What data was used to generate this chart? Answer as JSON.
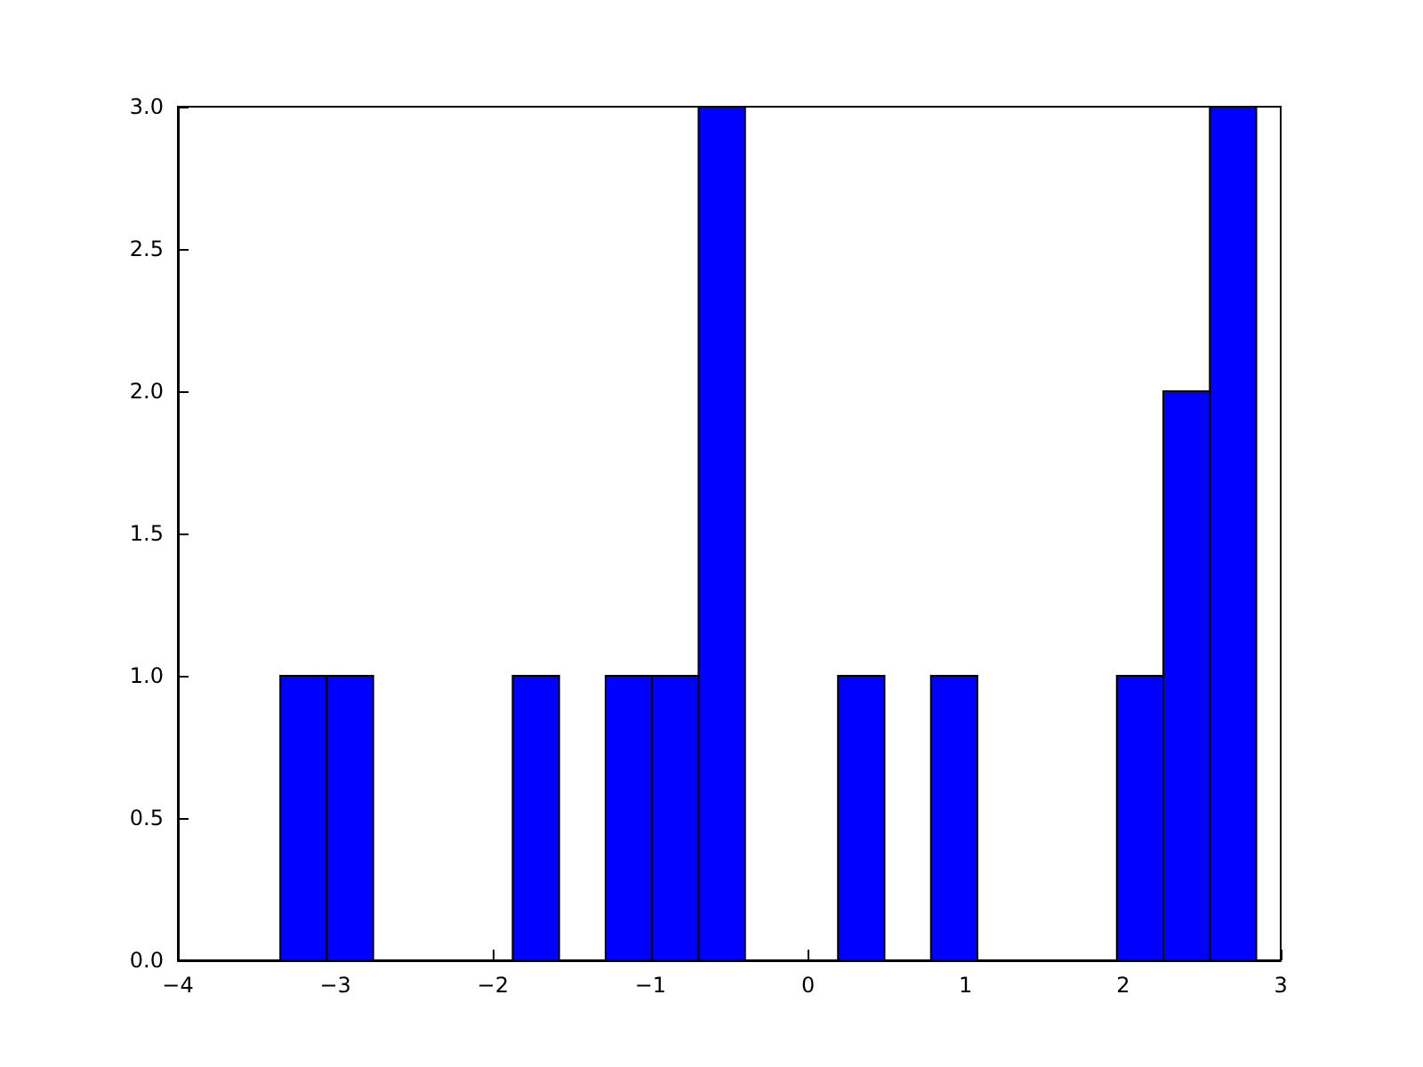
{
  "chart_data": {
    "type": "histogram",
    "bins": [
      -3.35,
      -3.055,
      -2.76,
      -2.465,
      -2.17,
      -1.875,
      -1.58,
      -1.285,
      -0.99,
      -0.695,
      -0.4,
      -0.105,
      0.19,
      0.485,
      0.78,
      1.075,
      1.37,
      1.665,
      1.96,
      2.255,
      2.55,
      2.845
    ],
    "values": [
      1,
      1,
      0,
      0,
      0,
      1,
      0,
      1,
      1,
      3,
      0,
      0,
      1,
      0,
      1,
      0,
      0,
      0,
      1,
      2,
      3
    ],
    "color": "#0000ff",
    "xlim": [
      -4,
      3
    ],
    "xticks": [
      {
        "value": -4,
        "label": "−4"
      },
      {
        "value": -3,
        "label": "−3"
      },
      {
        "value": -2,
        "label": "−2"
      },
      {
        "value": -1,
        "label": "−1"
      },
      0,
      1,
      2,
      3
    ],
    "ylim": [
      0,
      3
    ],
    "yticks": [
      {
        "value": 0,
        "label": "0.0"
      },
      {
        "value": 0.5,
        "label": "0.5"
      },
      {
        "value": 1,
        "label": "1.0"
      },
      {
        "value": 1.5,
        "label": "1.5"
      },
      {
        "value": 2,
        "label": "2.0"
      },
      {
        "value": 2.5,
        "label": "2.5"
      },
      {
        "value": 3,
        "label": "3.0"
      }
    ],
    "grid": false
  }
}
